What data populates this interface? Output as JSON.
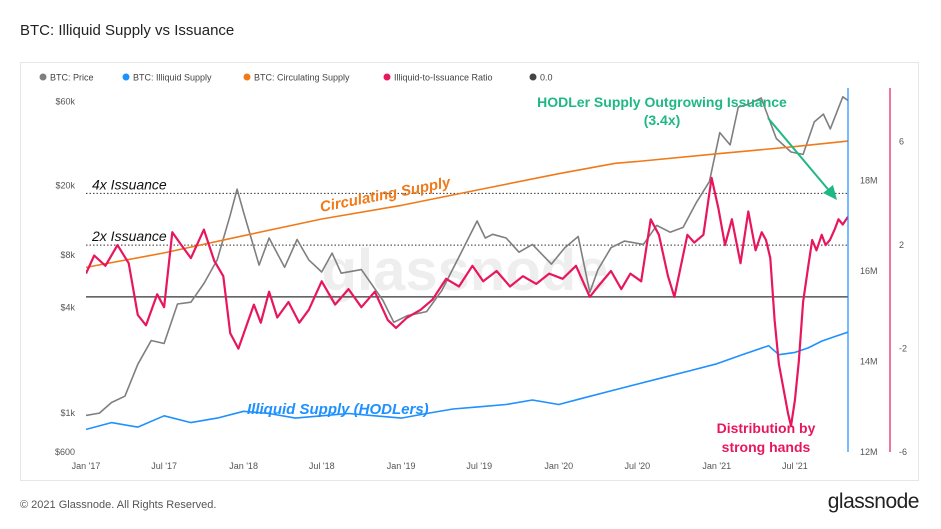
{
  "page": {
    "title": "BTC: Illiquid Supply vs Issuance",
    "copyright": "© 2021 Glassnode. All Rights Reserved.",
    "brand": "glassnode",
    "watermark": "glassnode"
  },
  "colors": {
    "price": "#7f7f7f",
    "illiquid_supply": "#1e90ff",
    "circulating_supply": "#f07a1a",
    "ratio": "#e8175d",
    "zero_line": "#444444",
    "hodler_annotation": "#1fb884",
    "illiquid_annotation": "#1e90ff",
    "distribution_annotation": "#e8175d"
  },
  "chart_data": {
    "type": "line",
    "title": "BTC: Illiquid Supply vs Issuance",
    "legend": {
      "placement": "top-left",
      "items": [
        {
          "label": "BTC: Price",
          "color": "#7f7f7f"
        },
        {
          "label": "BTC: Illiquid Supply",
          "color": "#1e90ff"
        },
        {
          "label": "BTC: Circulating Supply",
          "color": "#f07a1a"
        },
        {
          "label": "Illiquid-to-Issuance Ratio",
          "color": "#e8175d"
        },
        {
          "label": "0.0",
          "color": "#444444"
        }
      ]
    },
    "x_ticks": [
      "Jan '17",
      "Jul '17",
      "Jan '18",
      "Jul '18",
      "Jan '19",
      "Jul '19",
      "Jan '20",
      "Jul '20",
      "Jan '21",
      "Jul '21"
    ],
    "x_range": [
      "2017-01-01",
      "2021-11-01"
    ],
    "y_price": {
      "scale": "log",
      "range": [
        600,
        70000
      ],
      "ticks": [
        "$600",
        "$1k",
        "$4k",
        "$8k",
        "$20k",
        "$60k"
      ]
    },
    "y_supply": {
      "range": [
        12000000,
        20000000
      ],
      "ticks": [
        "12M",
        "14M",
        "16M",
        "18M"
      ]
    },
    "y_ratio": {
      "range": [
        -6,
        8
      ],
      "ticks": [
        "-6",
        "-2",
        "2",
        "6"
      ]
    },
    "series": [
      {
        "name": "BTC: Price",
        "axis": "price",
        "points": [
          [
            "2017-01-01",
            970
          ],
          [
            "2017-02-01",
            1000
          ],
          [
            "2017-03-01",
            1150
          ],
          [
            "2017-04-01",
            1250
          ],
          [
            "2017-05-01",
            1900
          ],
          [
            "2017-06-01",
            2600
          ],
          [
            "2017-07-01",
            2500
          ],
          [
            "2017-08-01",
            4200
          ],
          [
            "2017-09-01",
            4300
          ],
          [
            "2017-10-01",
            5500
          ],
          [
            "2017-11-01",
            7500
          ],
          [
            "2017-12-01",
            13500
          ],
          [
            "2017-12-17",
            19000
          ],
          [
            "2018-01-01",
            14000
          ],
          [
            "2018-02-06",
            7000
          ],
          [
            "2018-03-01",
            10000
          ],
          [
            "2018-04-06",
            6800
          ],
          [
            "2018-05-05",
            9800
          ],
          [
            "2018-06-01",
            7500
          ],
          [
            "2018-07-01",
            6400
          ],
          [
            "2018-07-25",
            8200
          ],
          [
            "2018-08-15",
            6300
          ],
          [
            "2018-10-01",
            6600
          ],
          [
            "2018-11-20",
            4400
          ],
          [
            "2018-12-15",
            3300
          ],
          [
            "2019-01-15",
            3600
          ],
          [
            "2019-03-01",
            3800
          ],
          [
            "2019-04-05",
            5000
          ],
          [
            "2019-05-15",
            7800
          ],
          [
            "2019-06-26",
            12500
          ],
          [
            "2019-07-15",
            10000
          ],
          [
            "2019-08-01",
            10500
          ],
          [
            "2019-09-01",
            10000
          ],
          [
            "2019-10-01",
            8300
          ],
          [
            "2019-11-01",
            9200
          ],
          [
            "2019-12-15",
            7100
          ],
          [
            "2020-01-15",
            8800
          ],
          [
            "2020-02-15",
            10200
          ],
          [
            "2020-03-13",
            4900
          ],
          [
            "2020-04-01",
            6600
          ],
          [
            "2020-05-01",
            8800
          ],
          [
            "2020-06-01",
            9600
          ],
          [
            "2020-07-15",
            9200
          ],
          [
            "2020-08-15",
            11800
          ],
          [
            "2020-09-15",
            10800
          ],
          [
            "2020-10-15",
            11500
          ],
          [
            "2020-11-15",
            16000
          ],
          [
            "2020-12-15",
            21000
          ],
          [
            "2021-01-08",
            40000
          ],
          [
            "2021-02-01",
            34000
          ],
          [
            "2021-02-20",
            56000
          ],
          [
            "2021-03-15",
            58000
          ],
          [
            "2021-04-14",
            63000
          ],
          [
            "2021-05-19",
            37000
          ],
          [
            "2021-06-22",
            31000
          ],
          [
            "2021-07-20",
            30000
          ],
          [
            "2021-08-15",
            46000
          ],
          [
            "2021-09-05",
            51000
          ],
          [
            "2021-09-21",
            42000
          ],
          [
            "2021-10-20",
            64000
          ],
          [
            "2021-11-01",
            61000
          ]
        ]
      },
      {
        "name": "BTC: Illiquid Supply",
        "axis": "supply",
        "points": [
          [
            "2017-01-01",
            12500000
          ],
          [
            "2017-03-01",
            12650000
          ],
          [
            "2017-05-01",
            12550000
          ],
          [
            "2017-07-01",
            12800000
          ],
          [
            "2017-09-01",
            12650000
          ],
          [
            "2017-11-01",
            12750000
          ],
          [
            "2018-01-01",
            12900000
          ],
          [
            "2018-03-01",
            12850000
          ],
          [
            "2018-05-01",
            12750000
          ],
          [
            "2018-07-01",
            12800000
          ],
          [
            "2018-09-01",
            12850000
          ],
          [
            "2018-11-01",
            12800000
          ],
          [
            "2019-01-01",
            12750000
          ],
          [
            "2019-03-01",
            12850000
          ],
          [
            "2019-05-01",
            12950000
          ],
          [
            "2019-07-01",
            13000000
          ],
          [
            "2019-09-01",
            13050000
          ],
          [
            "2019-11-01",
            13150000
          ],
          [
            "2020-01-01",
            13050000
          ],
          [
            "2020-03-01",
            13200000
          ],
          [
            "2020-05-01",
            13350000
          ],
          [
            "2020-07-01",
            13500000
          ],
          [
            "2020-09-01",
            13650000
          ],
          [
            "2020-11-01",
            13800000
          ],
          [
            "2021-01-01",
            13950000
          ],
          [
            "2021-03-01",
            14150000
          ],
          [
            "2021-05-01",
            14350000
          ],
          [
            "2021-05-25",
            14150000
          ],
          [
            "2021-07-01",
            14200000
          ],
          [
            "2021-08-01",
            14300000
          ],
          [
            "2021-09-01",
            14450000
          ],
          [
            "2021-10-01",
            14550000
          ],
          [
            "2021-11-01",
            14650000
          ]
        ]
      },
      {
        "name": "BTC: Circulating Supply",
        "axis": "supply",
        "points": [
          [
            "2017-01-01",
            16080000
          ],
          [
            "2017-07-01",
            16400000
          ],
          [
            "2018-01-01",
            16780000
          ],
          [
            "2018-07-01",
            17150000
          ],
          [
            "2019-01-01",
            17450000
          ],
          [
            "2019-07-01",
            17800000
          ],
          [
            "2020-01-01",
            18150000
          ],
          [
            "2020-05-11",
            18380000
          ],
          [
            "2020-07-01",
            18420000
          ],
          [
            "2021-01-01",
            18590000
          ],
          [
            "2021-07-01",
            18750000
          ],
          [
            "2021-11-01",
            18870000
          ]
        ]
      },
      {
        "name": "Illiquid-to-Issuance Ratio",
        "axis": "ratio",
        "points": [
          [
            "2017-01-01",
            0.9
          ],
          [
            "2017-01-20",
            1.6
          ],
          [
            "2017-02-15",
            1.2
          ],
          [
            "2017-03-15",
            2.0
          ],
          [
            "2017-04-10",
            1.3
          ],
          [
            "2017-05-01",
            -0.7
          ],
          [
            "2017-05-20",
            -1.1
          ],
          [
            "2017-06-15",
            0.1
          ],
          [
            "2017-07-01",
            -0.4
          ],
          [
            "2017-07-20",
            2.5
          ],
          [
            "2017-08-10",
            2.0
          ],
          [
            "2017-09-01",
            1.5
          ],
          [
            "2017-10-01",
            2.6
          ],
          [
            "2017-10-25",
            1.4
          ],
          [
            "2017-11-15",
            0.8
          ],
          [
            "2017-12-01",
            -1.4
          ],
          [
            "2017-12-20",
            -2.0
          ],
          [
            "2018-01-10",
            -1.0
          ],
          [
            "2018-01-25",
            -0.3
          ],
          [
            "2018-02-10",
            -1.0
          ],
          [
            "2018-03-01",
            0.2
          ],
          [
            "2018-03-20",
            -0.8
          ],
          [
            "2018-04-15",
            -0.2
          ],
          [
            "2018-05-10",
            -1.0
          ],
          [
            "2018-06-01",
            -0.5
          ],
          [
            "2018-07-01",
            0.6
          ],
          [
            "2018-08-01",
            -0.3
          ],
          [
            "2018-09-01",
            0.3
          ],
          [
            "2018-10-01",
            -0.4
          ],
          [
            "2018-11-01",
            0.2
          ],
          [
            "2018-12-01",
            -0.9
          ],
          [
            "2018-12-20",
            -1.2
          ],
          [
            "2019-01-15",
            -0.8
          ],
          [
            "2019-02-15",
            -0.5
          ],
          [
            "2019-03-15",
            -0.1
          ],
          [
            "2019-04-15",
            0.7
          ],
          [
            "2019-05-15",
            0.4
          ],
          [
            "2019-06-15",
            1.2
          ],
          [
            "2019-07-10",
            0.6
          ],
          [
            "2019-08-10",
            1.0
          ],
          [
            "2019-09-10",
            0.4
          ],
          [
            "2019-10-10",
            0.8
          ],
          [
            "2019-11-10",
            0.5
          ],
          [
            "2019-12-10",
            0.9
          ],
          [
            "2020-01-10",
            0.7
          ],
          [
            "2020-02-10",
            1.2
          ],
          [
            "2020-03-13",
            0.0
          ],
          [
            "2020-04-01",
            0.4
          ],
          [
            "2020-05-01",
            1.0
          ],
          [
            "2020-05-25",
            0.3
          ],
          [
            "2020-06-15",
            0.9
          ],
          [
            "2020-07-10",
            0.6
          ],
          [
            "2020-08-01",
            3.0
          ],
          [
            "2020-08-20",
            2.4
          ],
          [
            "2020-09-10",
            0.8
          ],
          [
            "2020-09-25",
            0.0
          ],
          [
            "2020-10-10",
            1.2
          ],
          [
            "2020-10-25",
            2.4
          ],
          [
            "2020-11-10",
            2.1
          ],
          [
            "2020-12-01",
            2.4
          ],
          [
            "2020-12-20",
            4.6
          ],
          [
            "2021-01-05",
            3.4
          ],
          [
            "2021-01-20",
            2.0
          ],
          [
            "2021-02-05",
            3.0
          ],
          [
            "2021-02-25",
            1.3
          ],
          [
            "2021-03-15",
            3.3
          ],
          [
            "2021-04-01",
            1.8
          ],
          [
            "2021-04-15",
            2.5
          ],
          [
            "2021-04-25",
            2.2
          ],
          [
            "2021-05-05",
            1.5
          ],
          [
            "2021-05-15",
            -0.9
          ],
          [
            "2021-05-25",
            -2.6
          ],
          [
            "2021-06-05",
            -3.6
          ],
          [
            "2021-06-15",
            -4.5
          ],
          [
            "2021-06-22",
            -5.0
          ],
          [
            "2021-07-01",
            -4.0
          ],
          [
            "2021-07-10",
            -2.5
          ],
          [
            "2021-07-20",
            -0.2
          ],
          [
            "2021-08-01",
            1.2
          ],
          [
            "2021-08-10",
            2.2
          ],
          [
            "2021-08-20",
            1.8
          ],
          [
            "2021-09-01",
            2.4
          ],
          [
            "2021-09-10",
            2.0
          ],
          [
            "2021-09-20",
            2.2
          ],
          [
            "2021-10-01",
            2.6
          ],
          [
            "2021-10-10",
            3.0
          ],
          [
            "2021-10-20",
            2.8
          ],
          [
            "2021-11-01",
            3.1
          ]
        ]
      }
    ],
    "reference_lines": [
      {
        "label": "4x Issuance",
        "ratio": 4
      },
      {
        "label": "2x Issuance",
        "ratio": 2
      },
      {
        "label": "0.0",
        "ratio": 0
      }
    ],
    "annotations": {
      "hodler": [
        "HODLer Supply Outgrowing Issuance",
        "(3.4x)"
      ],
      "circulating": "Circulating Supply",
      "illiquid": "Illiquid Supply (HODLers)",
      "distribution": [
        "Distribution by",
        "strong hands"
      ]
    }
  }
}
